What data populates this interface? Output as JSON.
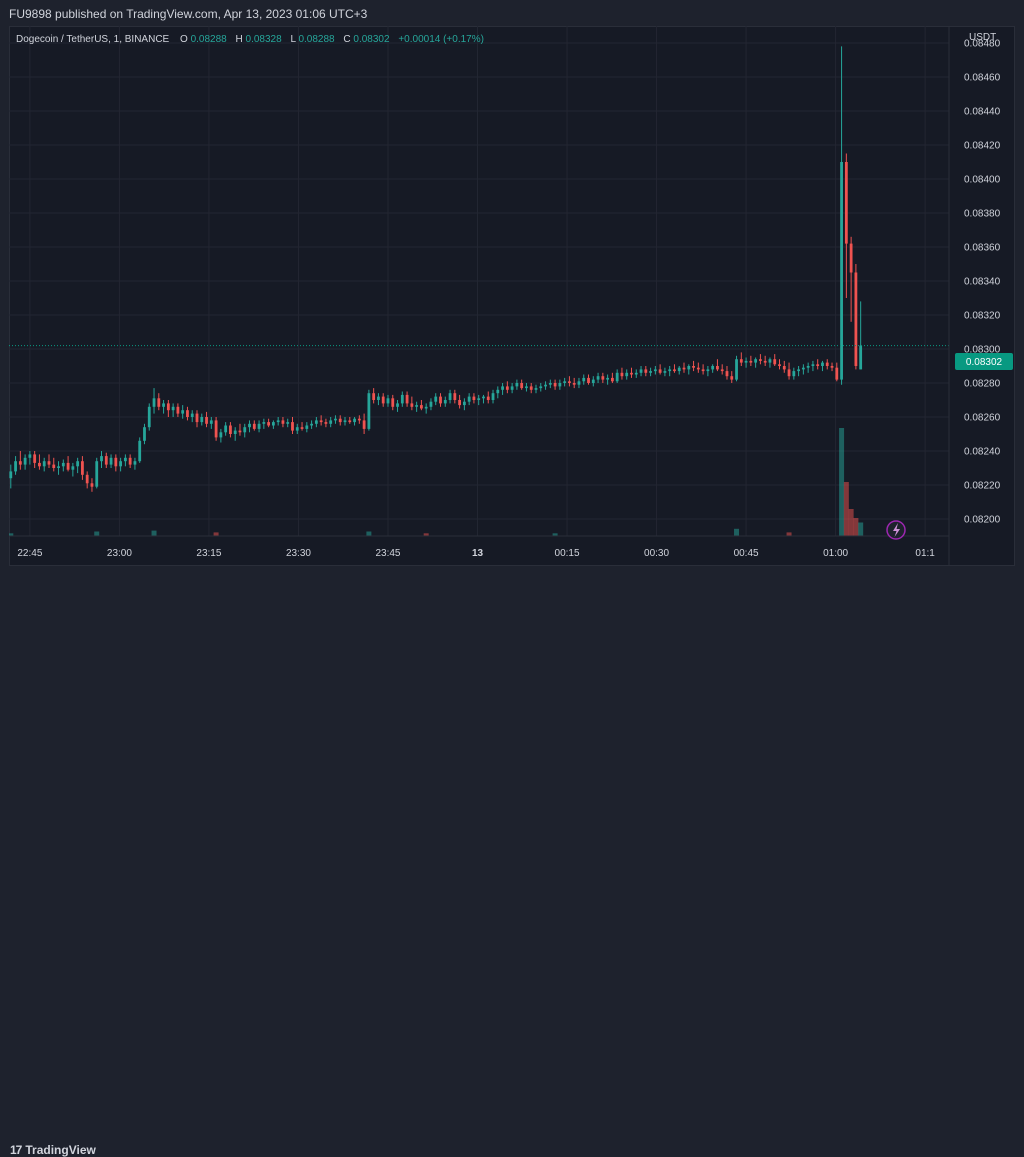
{
  "header": {
    "publish_line": "FU9898 published on TradingView.com, Apr 13, 2023 01:06 UTC+3"
  },
  "legend": {
    "symbol": "Dogecoin / TetherUS, 1, BINANCE",
    "o_label": "O",
    "o_value": "0.08288",
    "h_label": "H",
    "h_value": "0.08328",
    "l_label": "L",
    "l_value": "0.08288",
    "c_label": "C",
    "c_value": "0.08302",
    "change": "+0.00014 (+0.17%)"
  },
  "footer": {
    "logo_mark": "17",
    "logo_text": "TradingView"
  },
  "colors": {
    "up": "#26a69a",
    "down": "#ef5350",
    "background": "#161a25",
    "grid": "#232632",
    "text": "#d1d4dc",
    "last_price_bg": "#089981"
  },
  "chart_data": {
    "type": "candlestick",
    "currency_label": "USDT",
    "last_price_label": "0.08302",
    "last_price": 0.08302,
    "ylim": [
      0.0819,
      0.0849
    ],
    "y_ticks": [
      "0.08480",
      "0.08460",
      "0.08440",
      "0.08420",
      "0.08400",
      "0.08380",
      "0.08360",
      "0.08340",
      "0.08320",
      "0.08300",
      "0.08280",
      "0.08260",
      "0.08240",
      "0.08220",
      "0.08200"
    ],
    "x_ticks": [
      "22:45",
      "23:00",
      "23:15",
      "23:30",
      "23:45",
      "13",
      "00:15",
      "00:30",
      "00:45",
      "01:00",
      "01:1"
    ],
    "x_tick_minutes": [
      30,
      45,
      60,
      75,
      90,
      105,
      120,
      135,
      150,
      165,
      180
    ],
    "x_range_minutes": [
      26.5,
      184
    ],
    "candles": [
      [
        26.8,
        0.08224,
        0.08232,
        0.08218,
        0.08228
      ],
      [
        27.6,
        0.08228,
        0.08237,
        0.08226,
        0.08234
      ],
      [
        28.4,
        0.08234,
        0.0824,
        0.08229,
        0.08232
      ],
      [
        29.2,
        0.08232,
        0.08238,
        0.08229,
        0.08236
      ],
      [
        30.0,
        0.08236,
        0.0824,
        0.08232,
        0.08238
      ],
      [
        30.8,
        0.08238,
        0.0824,
        0.0823,
        0.08233
      ],
      [
        31.6,
        0.08233,
        0.08238,
        0.08229,
        0.08231
      ],
      [
        32.4,
        0.08231,
        0.08236,
        0.08228,
        0.08234
      ],
      [
        33.2,
        0.08234,
        0.08238,
        0.0823,
        0.08232
      ],
      [
        34.0,
        0.08232,
        0.08236,
        0.08228,
        0.0823
      ],
      [
        34.8,
        0.0823,
        0.08234,
        0.08226,
        0.08231
      ],
      [
        35.6,
        0.08231,
        0.08235,
        0.08228,
        0.08233
      ],
      [
        36.4,
        0.08233,
        0.08237,
        0.08228,
        0.08229
      ],
      [
        37.2,
        0.08229,
        0.08233,
        0.08225,
        0.08231
      ],
      [
        38.0,
        0.08231,
        0.08236,
        0.08227,
        0.08234
      ],
      [
        38.8,
        0.08234,
        0.08237,
        0.08223,
        0.08226
      ],
      [
        39.6,
        0.08226,
        0.08228,
        0.08218,
        0.08221
      ],
      [
        40.4,
        0.08221,
        0.08224,
        0.08216,
        0.08219
      ],
      [
        41.2,
        0.08219,
        0.08236,
        0.08218,
        0.08234
      ],
      [
        42.0,
        0.08234,
        0.0824,
        0.0823,
        0.08237
      ],
      [
        42.8,
        0.08237,
        0.08239,
        0.0823,
        0.08232
      ],
      [
        43.6,
        0.08232,
        0.08238,
        0.0823,
        0.08236
      ],
      [
        44.4,
        0.08236,
        0.08238,
        0.08228,
        0.08231
      ],
      [
        45.2,
        0.08231,
        0.08236,
        0.08228,
        0.08234
      ],
      [
        46.0,
        0.08234,
        0.08238,
        0.08231,
        0.08236
      ],
      [
        46.8,
        0.08236,
        0.08238,
        0.0823,
        0.08232
      ],
      [
        47.6,
        0.08232,
        0.08236,
        0.08229,
        0.08234
      ],
      [
        48.4,
        0.08234,
        0.08248,
        0.08233,
        0.08246
      ],
      [
        49.2,
        0.08246,
        0.08256,
        0.08244,
        0.08254
      ],
      [
        50.0,
        0.08254,
        0.08268,
        0.08252,
        0.08266
      ],
      [
        50.8,
        0.08266,
        0.08277,
        0.08262,
        0.08271
      ],
      [
        51.6,
        0.08271,
        0.08274,
        0.08264,
        0.08266
      ],
      [
        52.4,
        0.08266,
        0.0827,
        0.08262,
        0.08268
      ],
      [
        53.2,
        0.08268,
        0.0827,
        0.0826,
        0.08264
      ],
      [
        54.0,
        0.08264,
        0.08268,
        0.0826,
        0.08266
      ],
      [
        54.8,
        0.08266,
        0.08268,
        0.0826,
        0.08262
      ],
      [
        55.6,
        0.08262,
        0.08267,
        0.08259,
        0.08264
      ],
      [
        56.4,
        0.08264,
        0.08266,
        0.08258,
        0.0826
      ],
      [
        57.2,
        0.0826,
        0.08264,
        0.08257,
        0.08262
      ],
      [
        58.0,
        0.08262,
        0.08264,
        0.08254,
        0.08257
      ],
      [
        58.8,
        0.08257,
        0.08262,
        0.08255,
        0.0826
      ],
      [
        59.6,
        0.0826,
        0.08263,
        0.08254,
        0.08256
      ],
      [
        60.4,
        0.08256,
        0.0826,
        0.08253,
        0.08258
      ],
      [
        61.2,
        0.08258,
        0.0826,
        0.08246,
        0.08248
      ],
      [
        62.0,
        0.08248,
        0.08253,
        0.08245,
        0.08251
      ],
      [
        62.8,
        0.08251,
        0.08257,
        0.08249,
        0.08255
      ],
      [
        63.6,
        0.08255,
        0.08257,
        0.08248,
        0.0825
      ],
      [
        64.4,
        0.0825,
        0.08254,
        0.08246,
        0.08252
      ],
      [
        65.2,
        0.08252,
        0.08256,
        0.08249,
        0.08251
      ],
      [
        66.0,
        0.08251,
        0.08256,
        0.08248,
        0.08254
      ],
      [
        66.8,
        0.08254,
        0.08258,
        0.08251,
        0.08256
      ],
      [
        67.6,
        0.08256,
        0.08258,
        0.08252,
        0.08253
      ],
      [
        68.4,
        0.08253,
        0.08258,
        0.08251,
        0.08256
      ],
      [
        69.2,
        0.08256,
        0.08259,
        0.08253,
        0.08257
      ],
      [
        70.0,
        0.08257,
        0.08259,
        0.08254,
        0.08255
      ],
      [
        70.8,
        0.08255,
        0.08258,
        0.08253,
        0.08257
      ],
      [
        71.6,
        0.08257,
        0.0826,
        0.08255,
        0.08258
      ],
      [
        72.4,
        0.08258,
        0.0826,
        0.08254,
        0.08256
      ],
      [
        73.2,
        0.08256,
        0.08259,
        0.08254,
        0.08257
      ],
      [
        74.0,
        0.08257,
        0.0826,
        0.0825,
        0.08252
      ],
      [
        74.8,
        0.08252,
        0.08256,
        0.0825,
        0.08254
      ],
      [
        75.6,
        0.08254,
        0.08257,
        0.08252,
        0.08253
      ],
      [
        76.4,
        0.08253,
        0.08257,
        0.08251,
        0.08255
      ],
      [
        77.2,
        0.08255,
        0.08258,
        0.08253,
        0.08256
      ],
      [
        78.0,
        0.08256,
        0.0826,
        0.08254,
        0.08258
      ],
      [
        78.8,
        0.08258,
        0.08261,
        0.08255,
        0.08257
      ],
      [
        79.6,
        0.08257,
        0.08259,
        0.08254,
        0.08256
      ],
      [
        80.4,
        0.08256,
        0.0826,
        0.08254,
        0.08258
      ],
      [
        81.2,
        0.08258,
        0.08261,
        0.08256,
        0.08259
      ],
      [
        82.0,
        0.08259,
        0.08261,
        0.08255,
        0.08257
      ],
      [
        82.8,
        0.08257,
        0.0826,
        0.08255,
        0.08258
      ],
      [
        83.6,
        0.08258,
        0.0826,
        0.08256,
        0.08257
      ],
      [
        84.4,
        0.08257,
        0.0826,
        0.08255,
        0.08259
      ],
      [
        85.2,
        0.08259,
        0.08261,
        0.08256,
        0.08258
      ],
      [
        86.0,
        0.08258,
        0.08262,
        0.0825,
        0.08253
      ],
      [
        86.8,
        0.08253,
        0.08276,
        0.08252,
        0.08274
      ],
      [
        87.6,
        0.08274,
        0.08277,
        0.08268,
        0.0827
      ],
      [
        88.4,
        0.0827,
        0.08274,
        0.08267,
        0.08272
      ],
      [
        89.2,
        0.08272,
        0.08274,
        0.08266,
        0.08268
      ],
      [
        90.0,
        0.08268,
        0.08273,
        0.08266,
        0.08271
      ],
      [
        90.8,
        0.08271,
        0.08273,
        0.08264,
        0.08266
      ],
      [
        91.6,
        0.08266,
        0.0827,
        0.08263,
        0.08268
      ],
      [
        92.4,
        0.08268,
        0.08275,
        0.08266,
        0.08273
      ],
      [
        93.2,
        0.08273,
        0.08275,
        0.08266,
        0.08268
      ],
      [
        94.0,
        0.08268,
        0.08272,
        0.08264,
        0.08266
      ],
      [
        94.8,
        0.08266,
        0.08269,
        0.08263,
        0.08267
      ],
      [
        95.6,
        0.08267,
        0.0827,
        0.08264,
        0.08265
      ],
      [
        96.4,
        0.08265,
        0.08268,
        0.08262,
        0.08266
      ],
      [
        97.2,
        0.08266,
        0.08271,
        0.08264,
        0.08269
      ],
      [
        98.0,
        0.08269,
        0.08274,
        0.08267,
        0.08272
      ],
      [
        98.8,
        0.08272,
        0.08274,
        0.08266,
        0.08268
      ],
      [
        99.6,
        0.08268,
        0.08272,
        0.08266,
        0.0827
      ],
      [
        100.4,
        0.0827,
        0.08276,
        0.08268,
        0.08274
      ],
      [
        101.2,
        0.08274,
        0.08276,
        0.08268,
        0.0827
      ],
      [
        102.0,
        0.0827,
        0.08273,
        0.08265,
        0.08267
      ],
      [
        102.8,
        0.08267,
        0.08271,
        0.08264,
        0.08269
      ],
      [
        103.6,
        0.08269,
        0.08274,
        0.08267,
        0.08272
      ],
      [
        104.4,
        0.08272,
        0.08274,
        0.08268,
        0.0827
      ],
      [
        105.2,
        0.0827,
        0.08273,
        0.08267,
        0.08271
      ],
      [
        106.0,
        0.08271,
        0.08273,
        0.08268,
        0.08272
      ],
      [
        106.8,
        0.08272,
        0.08275,
        0.08268,
        0.0827
      ],
      [
        107.6,
        0.0827,
        0.08276,
        0.08268,
        0.08274
      ],
      [
        108.4,
        0.08274,
        0.08278,
        0.08271,
        0.08276
      ],
      [
        109.2,
        0.08276,
        0.0828,
        0.08273,
        0.08278
      ],
      [
        110.0,
        0.08278,
        0.08281,
        0.08274,
        0.08276
      ],
      [
        110.8,
        0.08276,
        0.0828,
        0.08274,
        0.08278
      ],
      [
        111.6,
        0.08278,
        0.08282,
        0.08276,
        0.0828
      ],
      [
        112.4,
        0.0828,
        0.08282,
        0.08276,
        0.08277
      ],
      [
        113.2,
        0.08277,
        0.0828,
        0.08275,
        0.08278
      ],
      [
        114.0,
        0.08278,
        0.0828,
        0.08274,
        0.08276
      ],
      [
        114.8,
        0.08276,
        0.08279,
        0.08274,
        0.08277
      ],
      [
        115.6,
        0.08277,
        0.0828,
        0.08275,
        0.08278
      ],
      [
        116.4,
        0.08278,
        0.08281,
        0.08276,
        0.08279
      ],
      [
        117.2,
        0.08279,
        0.08282,
        0.08277,
        0.0828
      ],
      [
        118.0,
        0.0828,
        0.08282,
        0.08276,
        0.08278
      ],
      [
        118.8,
        0.08278,
        0.08282,
        0.08276,
        0.0828
      ],
      [
        119.6,
        0.0828,
        0.08283,
        0.08278,
        0.08281
      ],
      [
        120.4,
        0.08281,
        0.08284,
        0.08278,
        0.0828
      ],
      [
        121.2,
        0.0828,
        0.08283,
        0.08277,
        0.08279
      ],
      [
        122.0,
        0.08279,
        0.08283,
        0.08277,
        0.08281
      ],
      [
        122.8,
        0.08281,
        0.08285,
        0.08279,
        0.08283
      ],
      [
        123.6,
        0.08283,
        0.08285,
        0.08279,
        0.0828
      ],
      [
        124.4,
        0.0828,
        0.08284,
        0.08278,
        0.08282
      ],
      [
        125.2,
        0.08282,
        0.08286,
        0.0828,
        0.08284
      ],
      [
        126.0,
        0.08284,
        0.08286,
        0.0828,
        0.08282
      ],
      [
        126.8,
        0.08282,
        0.08285,
        0.08279,
        0.08283
      ],
      [
        127.6,
        0.08283,
        0.08286,
        0.0828,
        0.08281
      ],
      [
        128.4,
        0.08281,
        0.08288,
        0.0828,
        0.08286
      ],
      [
        129.2,
        0.08286,
        0.08289,
        0.08282,
        0.08284
      ],
      [
        130.0,
        0.08284,
        0.08288,
        0.08282,
        0.08286
      ],
      [
        130.8,
        0.08286,
        0.08289,
        0.08283,
        0.08285
      ],
      [
        131.6,
        0.08285,
        0.08288,
        0.08283,
        0.08286
      ],
      [
        132.4,
        0.08286,
        0.0829,
        0.08284,
        0.08288
      ],
      [
        133.2,
        0.08288,
        0.0829,
        0.08284,
        0.08286
      ],
      [
        134.0,
        0.08286,
        0.08289,
        0.08284,
        0.08287
      ],
      [
        134.8,
        0.08287,
        0.0829,
        0.08285,
        0.08288
      ],
      [
        135.6,
        0.08288,
        0.08291,
        0.08285,
        0.08286
      ],
      [
        136.4,
        0.08286,
        0.08289,
        0.08284,
        0.08287
      ],
      [
        137.2,
        0.08287,
        0.0829,
        0.08284,
        0.08288
      ],
      [
        138.0,
        0.08288,
        0.08291,
        0.08286,
        0.08287
      ],
      [
        138.8,
        0.08287,
        0.0829,
        0.08285,
        0.08289
      ],
      [
        139.6,
        0.08289,
        0.08292,
        0.08286,
        0.08288
      ],
      [
        140.4,
        0.08288,
        0.08291,
        0.08285,
        0.0829
      ],
      [
        141.2,
        0.0829,
        0.08293,
        0.08287,
        0.08289
      ],
      [
        142.0,
        0.08289,
        0.08292,
        0.08286,
        0.08288
      ],
      [
        142.8,
        0.08288,
        0.08291,
        0.08285,
        0.08287
      ],
      [
        143.6,
        0.08287,
        0.0829,
        0.08284,
        0.08288
      ],
      [
        144.4,
        0.08288,
        0.08291,
        0.08286,
        0.0829
      ],
      [
        145.2,
        0.0829,
        0.08294,
        0.08287,
        0.08288
      ],
      [
        146.0,
        0.08288,
        0.08291,
        0.08285,
        0.08287
      ],
      [
        146.8,
        0.08287,
        0.0829,
        0.08282,
        0.08284
      ],
      [
        147.6,
        0.08284,
        0.08287,
        0.0828,
        0.08282
      ],
      [
        148.4,
        0.08282,
        0.08296,
        0.08281,
        0.08294
      ],
      [
        149.2,
        0.08294,
        0.08298,
        0.0829,
        0.08292
      ],
      [
        150.0,
        0.08292,
        0.08295,
        0.08289,
        0.08293
      ],
      [
        150.8,
        0.08293,
        0.08296,
        0.0829,
        0.08292
      ],
      [
        151.6,
        0.08292,
        0.08295,
        0.08289,
        0.08294
      ],
      [
        152.4,
        0.08294,
        0.08297,
        0.08291,
        0.08293
      ],
      [
        153.2,
        0.08293,
        0.08296,
        0.0829,
        0.08292
      ],
      [
        154.0,
        0.08292,
        0.08295,
        0.08289,
        0.08294
      ],
      [
        154.8,
        0.08294,
        0.08297,
        0.0829,
        0.08291
      ],
      [
        155.6,
        0.08291,
        0.08294,
        0.08288,
        0.0829
      ],
      [
        156.4,
        0.0829,
        0.08293,
        0.08286,
        0.08288
      ],
      [
        157.2,
        0.08288,
        0.08292,
        0.08282,
        0.08284
      ],
      [
        158.0,
        0.08284,
        0.08289,
        0.08282,
        0.08287
      ],
      [
        158.8,
        0.08287,
        0.0829,
        0.08284,
        0.08288
      ],
      [
        159.6,
        0.08288,
        0.08291,
        0.08285,
        0.08289
      ],
      [
        160.4,
        0.08289,
        0.08292,
        0.08286,
        0.0829
      ],
      [
        161.2,
        0.0829,
        0.08293,
        0.08287,
        0.08291
      ],
      [
        162.0,
        0.08291,
        0.08294,
        0.08288,
        0.0829
      ],
      [
        162.8,
        0.0829,
        0.08293,
        0.08287,
        0.08292
      ],
      [
        163.6,
        0.08292,
        0.08294,
        0.08288,
        0.0829
      ],
      [
        164.4,
        0.0829,
        0.08292,
        0.08287,
        0.08289
      ],
      [
        165.2,
        0.08289,
        0.08292,
        0.08281,
        0.08282
      ],
      [
        166.0,
        0.08282,
        0.08478,
        0.08279,
        0.0841
      ],
      [
        166.8,
        0.0841,
        0.08415,
        0.0833,
        0.08362
      ],
      [
        167.6,
        0.08362,
        0.08366,
        0.08316,
        0.08345
      ],
      [
        168.4,
        0.08345,
        0.0835,
        0.08288,
        0.0829
      ],
      [
        169.2,
        0.08288,
        0.08328,
        0.08288,
        0.08302
      ]
    ],
    "volumes": [
      [
        26.8,
        0.3,
        "up"
      ],
      [
        41.2,
        0.5,
        "up"
      ],
      [
        50.8,
        0.6,
        "up"
      ],
      [
        61.2,
        0.4,
        "down"
      ],
      [
        86.8,
        0.5,
        "up"
      ],
      [
        96.4,
        0.3,
        "down"
      ],
      [
        118.0,
        0.3,
        "up"
      ],
      [
        148.4,
        0.8,
        "up"
      ],
      [
        157.2,
        0.4,
        "down"
      ],
      [
        166.0,
        12.0,
        "up"
      ],
      [
        166.8,
        6.0,
        "down"
      ],
      [
        167.6,
        3.0,
        "down"
      ],
      [
        168.4,
        2.0,
        "down"
      ],
      [
        169.2,
        1.5,
        "up"
      ]
    ]
  }
}
